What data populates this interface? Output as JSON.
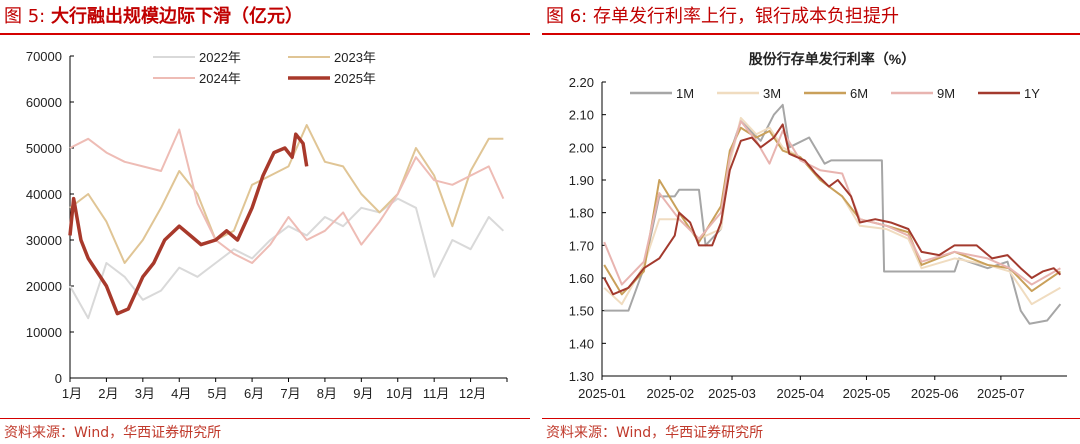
{
  "left": {
    "figure_label": "图 5:",
    "title": "大行融出规模边际下滑（亿元）",
    "source": "资料来源：Wind，华西证券研究所"
  },
  "right": {
    "figure_label": "图 6:",
    "title": "存单发行利率上行，银行成本负担提升",
    "source": "资料来源：Wind，华西证券研究所"
  },
  "chart_data": [
    {
      "type": "line",
      "title": "",
      "xlabel": "",
      "ylabel": "",
      "categories": [
        "1月",
        "2月",
        "3月",
        "4月",
        "5月",
        "6月",
        "7月",
        "8月",
        "9月",
        "10月",
        "11月",
        "12月"
      ],
      "ylim": [
        0,
        70000
      ],
      "yticks": [
        "0",
        "10000",
        "20000",
        "30000",
        "40000",
        "50000",
        "60000",
        "70000"
      ],
      "legend": "top",
      "grid": false,
      "series": [
        {
          "name": "2022年",
          "color": "#d9d9d9",
          "width": 2,
          "x": [
            1,
            1.5,
            2,
            2.5,
            3,
            3.5,
            4,
            4.5,
            5,
            5.5,
            6,
            6.5,
            7,
            7.5,
            8,
            8.5,
            9,
            9.5,
            10,
            10.5,
            11,
            11.5,
            12,
            12.5,
            12.9
          ],
          "y": [
            20000,
            13000,
            25000,
            22000,
            17000,
            19000,
            24000,
            22000,
            25000,
            28000,
            26000,
            30000,
            33000,
            31000,
            35000,
            33000,
            37000,
            36000,
            39000,
            37000,
            22000,
            30000,
            28000,
            35000,
            32000
          ]
        },
        {
          "name": "2023年",
          "color": "#e0c595",
          "width": 2,
          "x": [
            1,
            1.5,
            2,
            2.5,
            3,
            3.5,
            4,
            4.5,
            5,
            5.5,
            6,
            6.5,
            7,
            7.5,
            8,
            8.5,
            9,
            9.5,
            10,
            10.5,
            11,
            11.5,
            12,
            12.5,
            12.9
          ],
          "y": [
            37000,
            40000,
            34000,
            25000,
            30000,
            37000,
            45000,
            40000,
            30000,
            32000,
            42000,
            44000,
            46000,
            55000,
            47000,
            46000,
            40000,
            36000,
            40000,
            50000,
            44000,
            33000,
            45000,
            52000,
            52000
          ]
        },
        {
          "name": "2024年",
          "color": "#eebcb5",
          "width": 2,
          "x": [
            1,
            1.5,
            2,
            2.5,
            3,
            3.5,
            4,
            4.5,
            5,
            5.5,
            6,
            6.5,
            7,
            7.5,
            8,
            8.5,
            9,
            9.5,
            10,
            10.5,
            11,
            11.5,
            12,
            12.5,
            12.9
          ],
          "y": [
            50000,
            52000,
            49000,
            47000,
            46000,
            45000,
            54000,
            38000,
            30000,
            27000,
            25000,
            29000,
            35000,
            30000,
            32000,
            36000,
            29000,
            34000,
            40000,
            48000,
            43000,
            42000,
            44000,
            46000,
            39000
          ]
        },
        {
          "name": "2025年",
          "color": "#a8392b",
          "width": 3.5,
          "x": [
            1,
            1.1,
            1.3,
            1.5,
            2,
            2.3,
            2.6,
            3,
            3.3,
            3.6,
            4,
            4.3,
            4.6,
            5,
            5.3,
            5.6,
            6,
            6.3,
            6.6,
            6.9,
            7.1,
            7.2,
            7.4,
            7.5
          ],
          "y": [
            31000,
            39000,
            30000,
            26000,
            20000,
            14000,
            15000,
            22000,
            25000,
            30000,
            33000,
            31000,
            29000,
            30000,
            32000,
            30000,
            37000,
            44000,
            49000,
            50000,
            48000,
            53000,
            51000,
            46000
          ]
        }
      ]
    },
    {
      "type": "line",
      "title": "股份行存单发行利率（%）",
      "xlabel": "",
      "ylabel": "",
      "xticks": [
        "2025-01",
        "2025-02",
        "2025-03",
        "2025-04",
        "2025-05",
        "2025-06",
        "2025-07"
      ],
      "xlim": [
        "2025-01-01",
        "2025-07-31"
      ],
      "ylim": [
        1.3,
        2.2
      ],
      "yticks": [
        "1.30",
        "1.40",
        "1.50",
        "1.60",
        "1.70",
        "1.80",
        "1.90",
        "2.00",
        "2.10",
        "2.20"
      ],
      "legend": "top",
      "grid": false,
      "series": [
        {
          "name": "1M",
          "color": "#a6a6a6",
          "x": [
            "2025-01-02",
            "2025-01-13",
            "2025-01-20",
            "2025-01-27",
            "2025-02-03",
            "2025-02-05",
            "2025-02-14",
            "2025-02-17",
            "2025-02-24",
            "2025-02-28",
            "2025-03-05",
            "2025-03-14",
            "2025-03-20",
            "2025-03-24",
            "2025-03-27",
            "2025-04-05",
            "2025-04-12",
            "2025-04-15",
            "2025-05-08",
            "2025-05-09",
            "2025-06-10",
            "2025-06-12",
            "2025-06-25",
            "2025-07-04",
            "2025-07-10",
            "2025-07-14",
            "2025-07-22",
            "2025-07-28"
          ],
          "y": [
            1.5,
            1.5,
            1.63,
            1.85,
            1.85,
            1.87,
            1.87,
            1.7,
            1.75,
            1.98,
            2.08,
            2.02,
            2.1,
            2.13,
            2.0,
            2.03,
            1.95,
            1.96,
            1.96,
            1.62,
            1.62,
            1.66,
            1.63,
            1.65,
            1.5,
            1.46,
            1.47,
            1.52
          ]
        },
        {
          "name": "3M",
          "color": "#f0dcc0",
          "x": [
            "2025-01-02",
            "2025-01-10",
            "2025-01-20",
            "2025-01-27",
            "2025-02-05",
            "2025-02-14",
            "2025-02-24",
            "2025-02-28",
            "2025-03-05",
            "2025-03-12",
            "2025-03-18",
            "2025-03-24",
            "2025-04-01",
            "2025-04-10",
            "2025-04-20",
            "2025-04-28",
            "2025-05-10",
            "2025-05-20",
            "2025-05-26",
            "2025-06-10",
            "2025-06-25",
            "2025-07-05",
            "2025-07-15",
            "2025-07-28"
          ],
          "y": [
            1.57,
            1.52,
            1.64,
            1.78,
            1.78,
            1.72,
            1.75,
            1.95,
            2.09,
            2.04,
            2.06,
            2.0,
            1.97,
            1.9,
            1.85,
            1.76,
            1.75,
            1.72,
            1.63,
            1.66,
            1.64,
            1.62,
            1.52,
            1.57
          ]
        },
        {
          "name": "6M",
          "color": "#c9a05a",
          "x": [
            "2025-01-02",
            "2025-01-10",
            "2025-01-20",
            "2025-01-27",
            "2025-02-05",
            "2025-02-14",
            "2025-02-24",
            "2025-02-28",
            "2025-03-05",
            "2025-03-12",
            "2025-03-18",
            "2025-03-24",
            "2025-04-01",
            "2025-04-10",
            "2025-04-20",
            "2025-04-28",
            "2025-05-10",
            "2025-05-20",
            "2025-05-26",
            "2025-06-10",
            "2025-06-25",
            "2025-07-05",
            "2025-07-15",
            "2025-07-28"
          ],
          "y": [
            1.64,
            1.55,
            1.62,
            1.9,
            1.8,
            1.71,
            1.82,
            1.99,
            2.06,
            2.03,
            2.05,
            1.99,
            1.97,
            1.9,
            1.85,
            1.78,
            1.76,
            1.74,
            1.64,
            1.68,
            1.64,
            1.63,
            1.56,
            1.62
          ]
        },
        {
          "name": "9M",
          "color": "#e8b4b0",
          "x": [
            "2025-01-02",
            "2025-01-10",
            "2025-01-20",
            "2025-01-27",
            "2025-02-05",
            "2025-02-14",
            "2025-02-24",
            "2025-02-28",
            "2025-03-05",
            "2025-03-12",
            "2025-03-18",
            "2025-03-24",
            "2025-04-01",
            "2025-04-10",
            "2025-04-20",
            "2025-04-28",
            "2025-05-10",
            "2025-05-20",
            "2025-05-26",
            "2025-06-10",
            "2025-06-25",
            "2025-07-05",
            "2025-07-15",
            "2025-07-28"
          ],
          "y": [
            1.71,
            1.58,
            1.65,
            1.86,
            1.78,
            1.72,
            1.8,
            1.97,
            2.08,
            2.02,
            1.95,
            2.05,
            1.96,
            1.93,
            1.92,
            1.78,
            1.76,
            1.73,
            1.65,
            1.68,
            1.66,
            1.63,
            1.58,
            1.63
          ]
        },
        {
          "name": "1Y",
          "color": "#a33a2e",
          "x": [
            "2025-01-02",
            "2025-01-06",
            "2025-01-13",
            "2025-01-20",
            "2025-01-27",
            "2025-02-03",
            "2025-02-05",
            "2025-02-10",
            "2025-02-14",
            "2025-02-20",
            "2025-02-24",
            "2025-02-28",
            "2025-03-05",
            "2025-03-10",
            "2025-03-14",
            "2025-03-20",
            "2025-03-24",
            "2025-03-27",
            "2025-04-03",
            "2025-04-08",
            "2025-04-14",
            "2025-04-18",
            "2025-04-24",
            "2025-04-28",
            "2025-05-05",
            "2025-05-12",
            "2025-05-20",
            "2025-05-26",
            "2025-06-03",
            "2025-06-10",
            "2025-06-20",
            "2025-06-27",
            "2025-07-04",
            "2025-07-10",
            "2025-07-15",
            "2025-07-20",
            "2025-07-25",
            "2025-07-28"
          ],
          "y": [
            1.6,
            1.55,
            1.57,
            1.63,
            1.66,
            1.73,
            1.8,
            1.77,
            1.7,
            1.7,
            1.77,
            1.93,
            2.02,
            2.03,
            2.0,
            2.03,
            2.07,
            1.98,
            1.96,
            1.92,
            1.88,
            1.9,
            1.85,
            1.77,
            1.78,
            1.77,
            1.75,
            1.68,
            1.67,
            1.7,
            1.7,
            1.66,
            1.67,
            1.63,
            1.6,
            1.62,
            1.63,
            1.61
          ]
        }
      ]
    }
  ]
}
